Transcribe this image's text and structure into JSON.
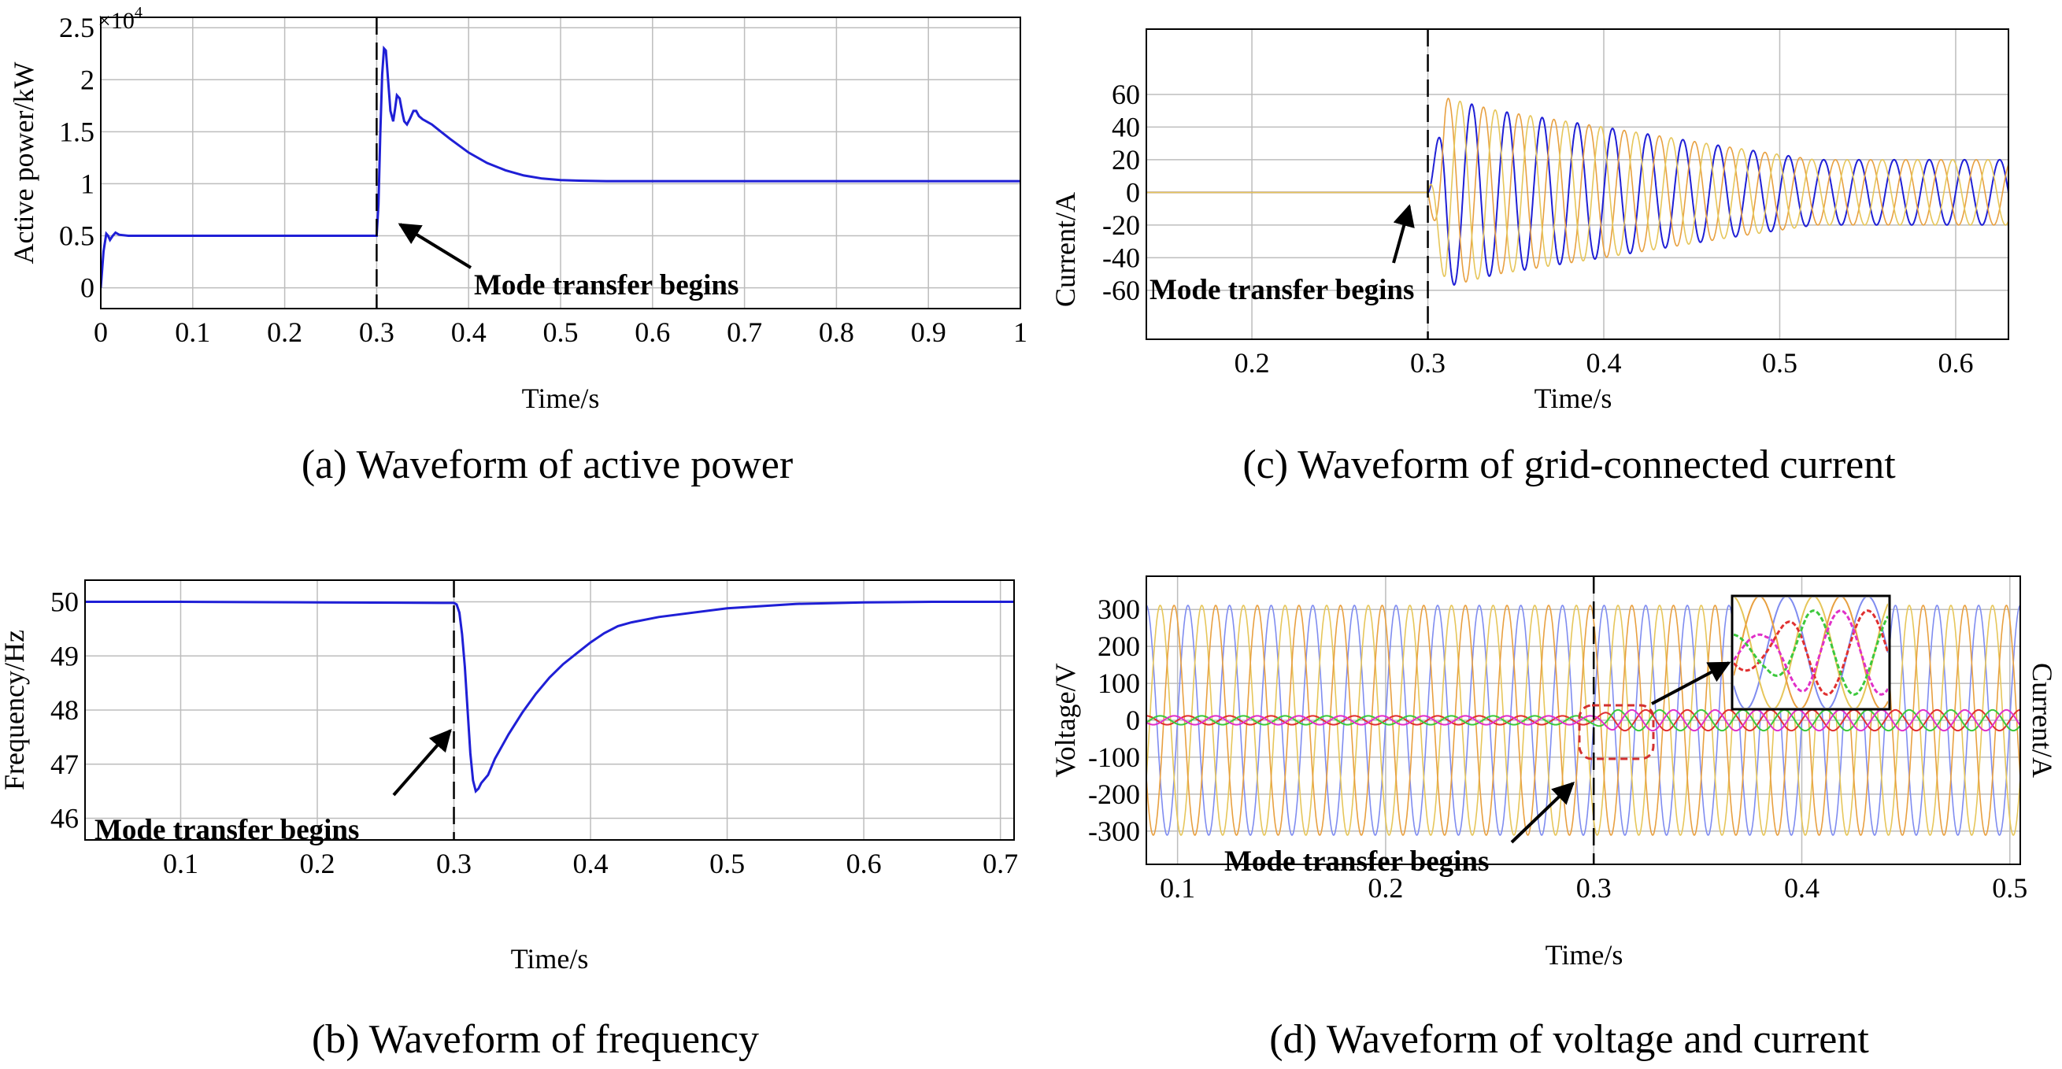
{
  "colors": {
    "blue": "#1f1fd6",
    "orange": "#e8a040",
    "yellow": "#e6c65a",
    "lightblue": "#7f8cf0",
    "red": "#e03030",
    "green": "#3cc83c",
    "magenta": "#e030c8",
    "grid": "#bdbdbd",
    "annot_red": "#d23030"
  },
  "chart_data": [
    {
      "id": "a",
      "type": "line",
      "caption": "(a) Waveform of active power",
      "xlabel": "Time/s",
      "ylabel": "Active power/kW",
      "exponent_prefix": "×10",
      "exponent_power": "4",
      "xlim": [
        0,
        1
      ],
      "ylim": [
        -0.2,
        2.6
      ],
      "xticks": [
        0,
        0.1,
        0.2,
        0.3,
        0.4,
        0.5,
        0.6,
        0.7,
        0.8,
        0.9,
        1
      ],
      "xtick_labels": [
        "0",
        "0.1",
        "0.2",
        "0.3",
        "0.4",
        "0.5",
        "0.6",
        "0.7",
        "0.8",
        "0.9",
        "1"
      ],
      "yticks": [
        0,
        0.5,
        1,
        1.5,
        2,
        2.5
      ],
      "ytick_labels": [
        "0",
        "0.5",
        "1",
        "1.5",
        "2",
        "2.5"
      ],
      "event_x": 0.3,
      "annotation": "Mode transfer begins",
      "series": [
        {
          "name": "Active power",
          "color": "#1f1fd6",
          "x": [
            0,
            0.003,
            0.006,
            0.008,
            0.01,
            0.013,
            0.016,
            0.02,
            0.03,
            0.05,
            0.1,
            0.2,
            0.2995,
            0.3,
            0.302,
            0.304,
            0.306,
            0.308,
            0.31,
            0.312,
            0.315,
            0.318,
            0.32,
            0.322,
            0.325,
            0.328,
            0.33,
            0.333,
            0.336,
            0.34,
            0.343,
            0.346,
            0.35,
            0.36,
            0.37,
            0.38,
            0.4,
            0.42,
            0.44,
            0.46,
            0.48,
            0.5,
            0.52,
            0.55,
            0.575,
            0.6,
            0.7,
            0.8,
            0.9,
            1.0
          ],
          "y": [
            0,
            0.35,
            0.52,
            0.5,
            0.46,
            0.5,
            0.53,
            0.51,
            0.5,
            0.5,
            0.5,
            0.5,
            0.5,
            0.5,
            0.8,
            1.5,
            2.05,
            2.3,
            2.28,
            2.05,
            1.7,
            1.6,
            1.72,
            1.85,
            1.82,
            1.68,
            1.6,
            1.57,
            1.62,
            1.7,
            1.7,
            1.65,
            1.62,
            1.57,
            1.5,
            1.43,
            1.3,
            1.2,
            1.13,
            1.08,
            1.05,
            1.035,
            1.03,
            1.025,
            1.025,
            1.025,
            1.025,
            1.025,
            1.025,
            1.025
          ]
        }
      ]
    },
    {
      "id": "b",
      "type": "line",
      "caption": "(b) Waveform of frequency",
      "xlabel": "Time/s",
      "ylabel": "Frequency/Hz",
      "xlim": [
        0.03,
        0.71
      ],
      "ylim": [
        45.6,
        50.4
      ],
      "xticks": [
        0.1,
        0.2,
        0.3,
        0.4,
        0.5,
        0.6,
        0.7
      ],
      "xtick_labels": [
        "0.1",
        "0.2",
        "0.3",
        "0.4",
        "0.5",
        "0.6",
        "0.7"
      ],
      "yticks": [
        46,
        47,
        48,
        49,
        50
      ],
      "ytick_labels": [
        "46",
        "47",
        "48",
        "49",
        "50"
      ],
      "event_x": 0.3,
      "annotation": "Mode transfer begins",
      "series": [
        {
          "name": "Frequency",
          "color": "#1f1fd6",
          "x": [
            0.03,
            0.1,
            0.2,
            0.29,
            0.3,
            0.302,
            0.304,
            0.306,
            0.308,
            0.31,
            0.312,
            0.314,
            0.316,
            0.318,
            0.32,
            0.325,
            0.33,
            0.34,
            0.35,
            0.36,
            0.37,
            0.38,
            0.39,
            0.4,
            0.41,
            0.42,
            0.43,
            0.45,
            0.5,
            0.55,
            0.6,
            0.65,
            0.71
          ],
          "y": [
            50,
            50,
            49.99,
            49.98,
            49.98,
            49.95,
            49.8,
            49.4,
            48.8,
            48,
            47.2,
            46.7,
            46.5,
            46.55,
            46.65,
            46.8,
            47.1,
            47.55,
            47.95,
            48.3,
            48.6,
            48.85,
            49.05,
            49.25,
            49.42,
            49.55,
            49.62,
            49.72,
            49.88,
            49.96,
            49.99,
            50,
            50
          ]
        }
      ]
    },
    {
      "id": "c",
      "type": "line",
      "caption": "(c) Waveform of grid-connected current",
      "xlabel": "Time/s",
      "ylabel": "Current/A",
      "xlim": [
        0.14,
        0.63
      ],
      "ylim": [
        -90,
        100
      ],
      "xticks": [
        0.2,
        0.3,
        0.4,
        0.5,
        0.6
      ],
      "xtick_labels": [
        "0.2",
        "0.3",
        "0.4",
        "0.5",
        "0.6"
      ],
      "yticks": [
        -60,
        -40,
        -20,
        0,
        20,
        40,
        60
      ],
      "ytick_labels": [
        "-60",
        "-40",
        "-20",
        "0",
        "20",
        "40",
        "60"
      ],
      "event_x": 0.3,
      "annotation": "Mode transfer begins",
      "waveform": {
        "frequency_hz": 50,
        "start_time": 0.3,
        "envelope_t": [
          0.3,
          0.31,
          0.34,
          0.4,
          0.47,
          0.52,
          0.63
        ],
        "envelope_amp": [
          0,
          58,
          50,
          40,
          28,
          20,
          20
        ],
        "phases": [
          {
            "name": "Phase A",
            "color": "#1f1fd6",
            "phase_deg": 0
          },
          {
            "name": "Phase B",
            "color": "#e8a040",
            "phase_deg": 120
          },
          {
            "name": "Phase C",
            "color": "#e6c65a",
            "phase_deg": 240
          }
        ]
      }
    },
    {
      "id": "d",
      "type": "line",
      "caption": "(d) Waveform of voltage and current",
      "xlabel": "Time/s",
      "ylabel": "Voltage/V",
      "ylabel_right": "Current/A",
      "xlim": [
        0.085,
        0.505
      ],
      "ylim": [
        -390,
        390
      ],
      "xticks": [
        0.1,
        0.2,
        0.3,
        0.4,
        0.5
      ],
      "xtick_labels": [
        "0.1",
        "0.2",
        "0.3",
        "0.4",
        "0.5"
      ],
      "yticks": [
        -300,
        -200,
        -100,
        0,
        100,
        200,
        300
      ],
      "ytick_labels": [
        "-300",
        "-200",
        "-100",
        "0",
        "100",
        "200",
        "300"
      ],
      "event_x": 0.3,
      "annotation": "Mode transfer begins",
      "voltage": {
        "amplitude": 311,
        "frequency_hz": 50,
        "phases": [
          {
            "name": "Voltage A",
            "color": "#7f8cf0",
            "phase_deg": 0
          },
          {
            "name": "Voltage B",
            "color": "#e6c65a",
            "phase_deg": 120
          },
          {
            "name": "Voltage C",
            "color": "#e8a040",
            "phase_deg": 240
          }
        ]
      },
      "current": {
        "frequency_hz": 50,
        "amp_before": 12,
        "amp_after": 28,
        "transfer_time": 0.3,
        "phases": [
          {
            "name": "Current A",
            "color": "#e03030",
            "phase_deg": 0
          },
          {
            "name": "Current B",
            "color": "#3cc83c",
            "phase_deg": 120
          },
          {
            "name": "Current C",
            "color": "#e030c8",
            "phase_deg": 240
          }
        ]
      },
      "zoom_inset": {
        "t_from": 0.292,
        "t_to": 0.33
      }
    }
  ]
}
